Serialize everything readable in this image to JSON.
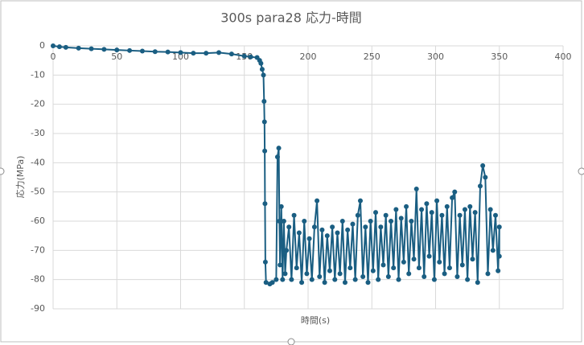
{
  "chart_data": {
    "type": "scatter",
    "title": "300s para28 応力-時間",
    "x_label": "時間(s)",
    "y_label": "応力(MPa)",
    "xlim": [
      0,
      400
    ],
    "ylim": [
      -90,
      0
    ],
    "xticks": [
      0,
      50,
      100,
      150,
      200,
      250,
      300,
      350,
      400
    ],
    "yticks": [
      0,
      -10,
      -20,
      -30,
      -40,
      -50,
      -60,
      -70,
      -80,
      -90
    ],
    "grid": true,
    "series": [
      {
        "color": "#1a5e82",
        "x": [
          0,
          5,
          10,
          20,
          30,
          40,
          50,
          60,
          70,
          80,
          90,
          100,
          110,
          120,
          130,
          140,
          150,
          155,
          160,
          162,
          163,
          164,
          165,
          165.5,
          165.8,
          166,
          166.2,
          166.5,
          167,
          170,
          172,
          175,
          176,
          177,
          177.5,
          178,
          179,
          180,
          181,
          182,
          183,
          185,
          187,
          189,
          191,
          193,
          195,
          197,
          199,
          201,
          203,
          205,
          207,
          209,
          211,
          213,
          215,
          217,
          219,
          221,
          223,
          225,
          227,
          229,
          231,
          233,
          235,
          237,
          239,
          241,
          243,
          245,
          247,
          249,
          251,
          253,
          255,
          257,
          259,
          261,
          263,
          265,
          267,
          269,
          271,
          273,
          275,
          277,
          279,
          281,
          283,
          285,
          287,
          289,
          291,
          293,
          295,
          297,
          299,
          301,
          303,
          305,
          307,
          309,
          311,
          313,
          315,
          317,
          319,
          321,
          323,
          325,
          327,
          329,
          331,
          333,
          335,
          337,
          339,
          341,
          343,
          345,
          347,
          349,
          350,
          350
        ],
        "y": [
          0,
          -0.3,
          -0.5,
          -0.8,
          -1,
          -1.2,
          -1.4,
          -1.6,
          -1.8,
          -2,
          -2.1,
          -2.3,
          -2.5,
          -2.5,
          -2.3,
          -2.8,
          -3.5,
          -3.8,
          -4,
          -5,
          -6,
          -8,
          -10,
          -19,
          -26,
          -36,
          -54,
          -74,
          -81,
          -81.5,
          -81,
          -80,
          -38,
          -35,
          -60,
          -75,
          -55,
          -80,
          -60,
          -78,
          -70,
          -62,
          -80,
          -58,
          -76,
          -64,
          -81,
          -60,
          -78,
          -66,
          -80,
          -62,
          -53,
          -79,
          -63,
          -81,
          -65,
          -77,
          -62,
          -80,
          -64,
          -78,
          -60,
          -81,
          -63,
          -76,
          -61,
          -80,
          -58,
          -53,
          -79,
          -62,
          -81,
          -60,
          -77,
          -57,
          -80,
          -62,
          -75,
          -58,
          -79,
          -60,
          -76,
          -56,
          -80,
          -59,
          -74,
          -55,
          -78,
          -60,
          -73,
          -49,
          -76,
          -56,
          -79,
          -54,
          -72,
          -57,
          -80,
          -53,
          -74,
          -58,
          -78,
          -55,
          -76,
          -52,
          -50,
          -79,
          -58,
          -75,
          -56,
          -80,
          -55,
          -73,
          -57,
          -81,
          -48,
          -41,
          -45,
          -78,
          -56,
          -70,
          -58,
          -77,
          -62,
          -72
        ]
      }
    ]
  }
}
